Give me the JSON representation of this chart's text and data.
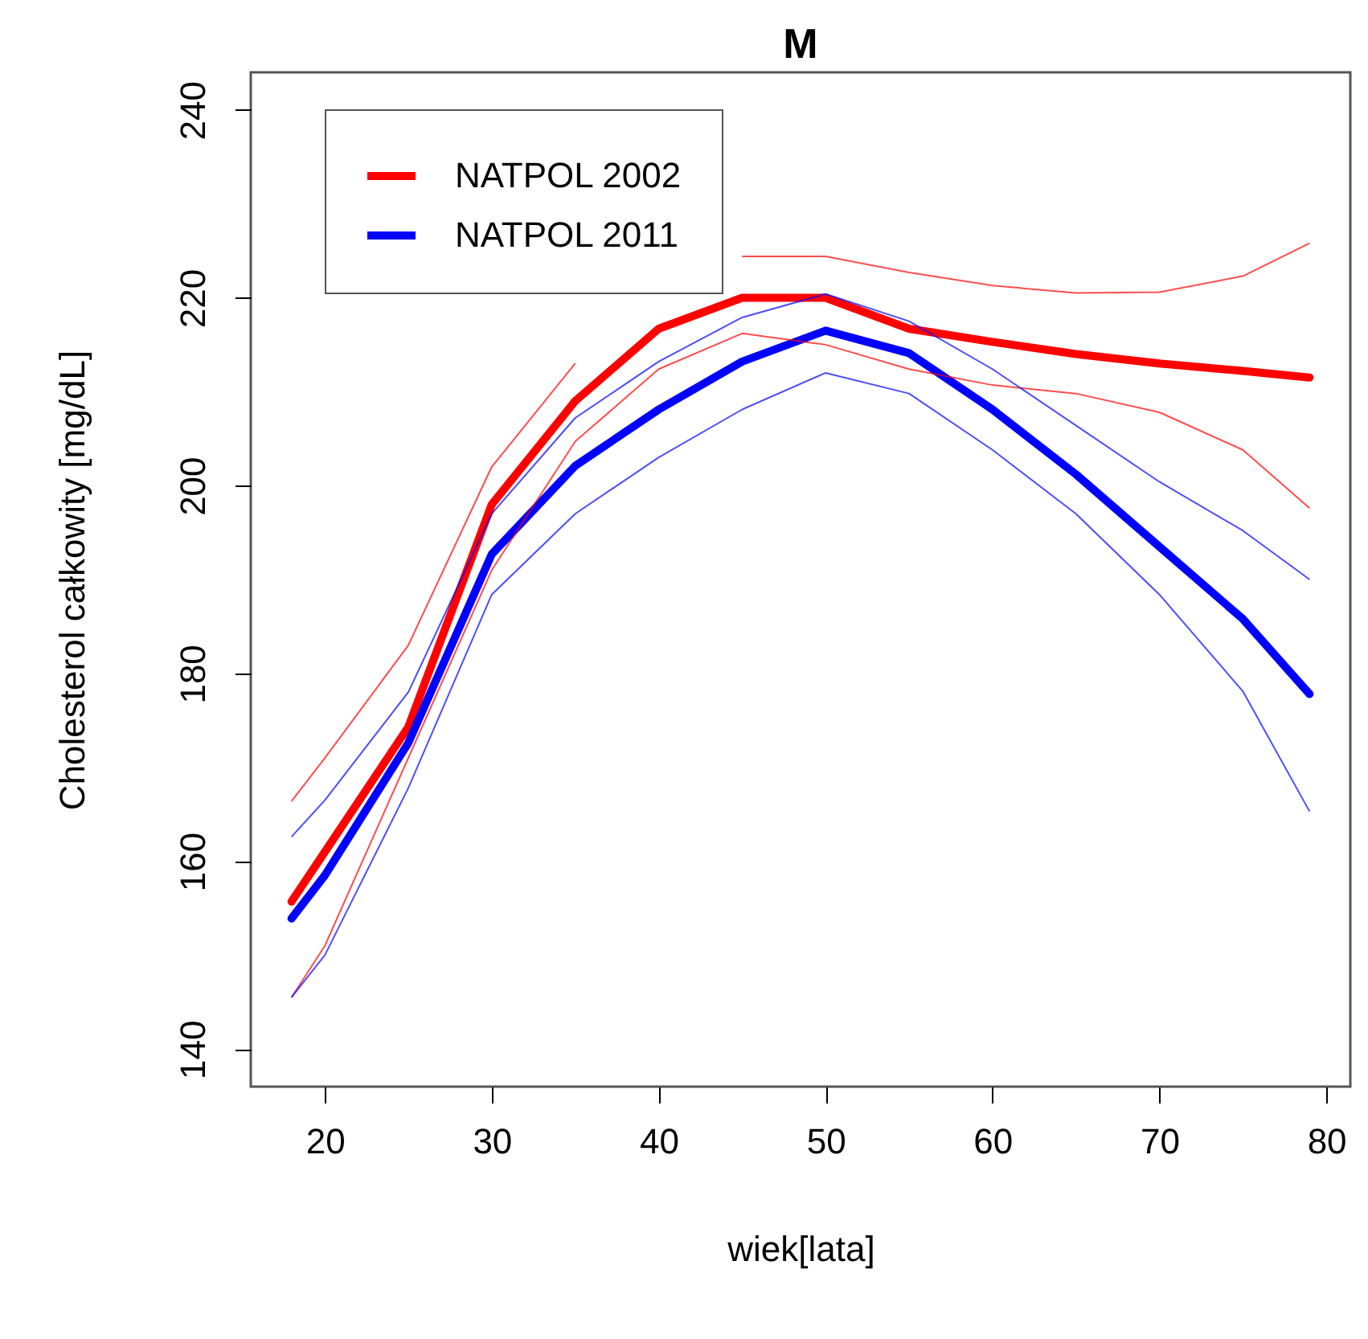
{
  "chart_data": {
    "type": "line",
    "title": "M",
    "xlabel": "wiek[lata]",
    "ylabel": "Cholesterol całkowity [mg/dL]",
    "x": [
      18,
      20,
      25,
      30,
      35,
      40,
      45,
      50,
      55,
      60,
      65,
      70,
      75,
      79
    ],
    "series": [
      {
        "name": "NATPOL 2002",
        "color": "#ff0000",
        "values": [
          155.7,
          161,
          174.3,
          198,
          209,
          216.7,
          220,
          220,
          216.7,
          215.3,
          214,
          213,
          212.2,
          211.5
        ]
      },
      {
        "name": "NATPOL 2011",
        "color": "#0000ff",
        "values": [
          153.9,
          158.5,
          172.6,
          192.7,
          202.1,
          208.1,
          213.2,
          216.5,
          214.1,
          208.1,
          201.2,
          193.5,
          185.8,
          177.8
        ]
      },
      {
        "color": "#ff0000",
        "values": [
          145.5,
          151,
          171,
          191,
          204.7,
          212.4,
          216.2,
          215,
          212.4,
          210.7,
          209.8,
          207.8,
          203.8,
          197.6
        ]
      },
      {
        "color": "#ff0000",
        "values": [
          166.4,
          171,
          183,
          202,
          213,
          null,
          224.4,
          224.4,
          222.7,
          221.3,
          220.5,
          220.6,
          222.3,
          225.8
        ]
      },
      {
        "color": "#0000ff",
        "values": [
          145.5,
          150,
          167.8,
          188.4,
          197,
          203,
          208.1,
          212,
          209.8,
          203.8,
          197,
          188.4,
          178.1,
          165.3
        ]
      },
      {
        "color": "#0000ff",
        "values": [
          162.6,
          166.5,
          178,
          197,
          207.2,
          213.2,
          217.9,
          220.4,
          217.5,
          212.4,
          206.4,
          200.4,
          195.2,
          190
        ]
      }
    ],
    "xlim": [
      15.56,
      81.44
    ],
    "ylim": [
      136,
      244
    ],
    "xticks": [
      20,
      30,
      40,
      50,
      60,
      70,
      80
    ],
    "yticks": [
      140,
      160,
      180,
      200,
      220,
      240
    ],
    "legend": "top left",
    "line_style": "solid"
  }
}
